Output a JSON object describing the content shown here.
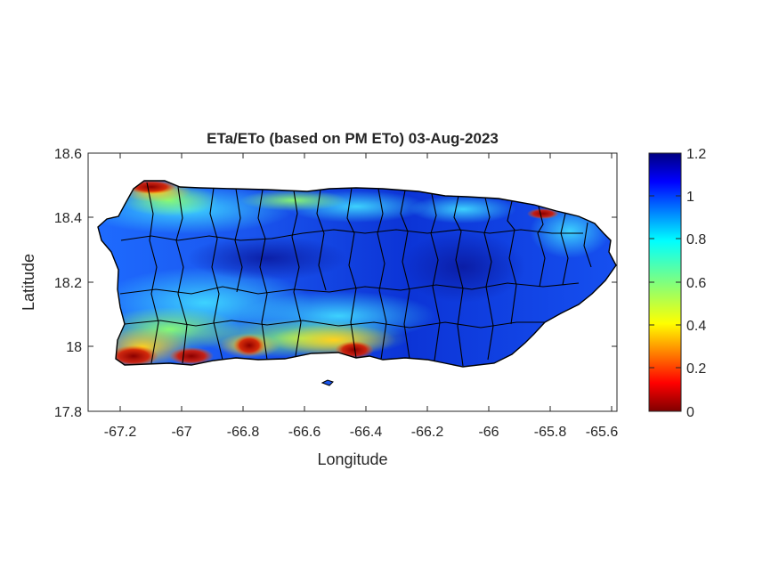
{
  "title": "ETa/ETo (based on PM ETo) 03-Aug-2023",
  "map": {
    "xlabel": "Longitude",
    "ylabel": "Latitude",
    "xlim": [
      -67.3,
      -65.58
    ],
    "ylim": [
      17.8,
      18.6
    ],
    "xticks": [
      "-67.2",
      "-67",
      "-66.8",
      "-66.6",
      "-66.4",
      "-66.2",
      "-66",
      "-65.8",
      "-65.6"
    ],
    "yticks": [
      "18.6",
      "18.4",
      "18.2",
      "18"
    ]
  },
  "colorbar": {
    "ticks": [
      "1.2",
      "1",
      "0.8",
      "0.6",
      "0.4",
      "0.2",
      "0"
    ],
    "range": [
      0,
      1.2
    ],
    "colormap": "jet-reversed"
  },
  "colors": {
    "axis": "#262626",
    "boundary": "#000000",
    "low": "#800000",
    "mid": "#00ffff",
    "high": "#000080"
  }
}
